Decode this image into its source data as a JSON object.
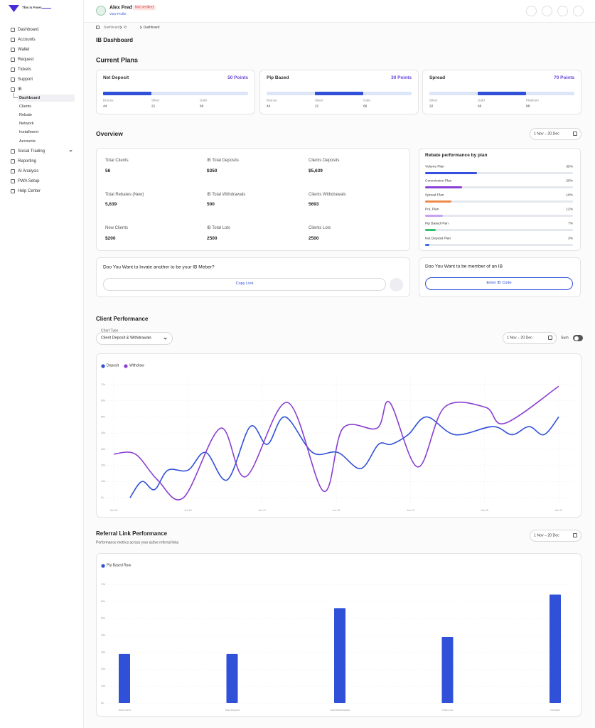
{
  "sidebar": {
    "brand": "This is Forex",
    "nav": [
      "Dashboard",
      "Accounts",
      "Wallet",
      "Request",
      "Tickets",
      "Support",
      "IB"
    ],
    "ib_sub": [
      "Dashboard",
      "Clients",
      "Rebate",
      "Network",
      "Installment",
      "Accounts"
    ],
    "nav_after": [
      "Social Trading",
      "Reporting",
      "AI Analysis",
      "PWA Setup",
      "Help Center"
    ]
  },
  "header": {
    "user_name": "Alex Fred",
    "status": "Not Verified",
    "profile_link": "View Profile"
  },
  "breadcrumb": [
    "Dashboard",
    "IB",
    "Dashboard"
  ],
  "page_title": "IB Dashboard",
  "plans": {
    "title": "Current Plans",
    "cards": [
      {
        "name": "Net Deposit",
        "points": "50 Points",
        "tiers": [
          {
            "name": "Bronze",
            "value": "44"
          },
          {
            "name": "Silver",
            "value": "21"
          },
          {
            "name": "Gold",
            "value": "66"
          }
        ]
      },
      {
        "name": "Pip Based",
        "points": "30 Points",
        "tiers": [
          {
            "name": "Bronze",
            "value": "44"
          },
          {
            "name": "Silver",
            "value": "21"
          },
          {
            "name": "Gold",
            "value": "66"
          }
        ]
      },
      {
        "name": "Spread",
        "points": "70 Points",
        "tiers": [
          {
            "name": "Silver",
            "value": "22"
          },
          {
            "name": "Gold",
            "value": "66"
          },
          {
            "name": "Platinum",
            "value": "88"
          }
        ]
      }
    ]
  },
  "overview": {
    "title": "Overview",
    "date_range": "1 Nov – 20 Dec",
    "stats": [
      {
        "label": "Total Clients",
        "value": "56"
      },
      {
        "label": "IB Total Deposits",
        "value": "$350"
      },
      {
        "label": "Clients Deposits",
        "value": "$5,639"
      },
      {
        "label": "Total Rebates (New)",
        "value": "5,639"
      },
      {
        "label": "IB Total Withdrawals",
        "value": "500"
      },
      {
        "label": "Clients Withdrawals",
        "value": "5693"
      },
      {
        "label": "New Clients",
        "value": "$200"
      },
      {
        "label": "IB Total Lots",
        "value": "2500"
      },
      {
        "label": "Clients Lots",
        "value": "2500"
      }
    ]
  },
  "rebate": {
    "title": "Rebate performance by plan",
    "plans": [
      {
        "name": "Volume Plan",
        "value": 35,
        "value_label": "35%",
        "color": "#3550e0"
      },
      {
        "name": "Commission Plan",
        "value": 25,
        "value_label": "25%",
        "color": "#8a3fd6"
      },
      {
        "name": "Spread Plan",
        "value": 18,
        "value_label": "18%",
        "color": "#f08a4b"
      },
      {
        "name": "PnL Plan",
        "value": 12,
        "value_label": "12%",
        "color": "#c6a4f2"
      },
      {
        "name": "Pip Based Plan",
        "value": 7,
        "value_label": "7%",
        "color": "#2fc26b"
      },
      {
        "name": "Net Deposit Plan",
        "value": 3,
        "value_label": "3%",
        "color": "#3a6be0"
      }
    ]
  },
  "invite": {
    "question": "Doo You Want to Invate another to be your IB Meber?",
    "button": "Copy Link"
  },
  "join": {
    "question": "Doo You Want to be member of an IB",
    "button": "Enter IB Code"
  },
  "client_performance": {
    "title": "Client Performance",
    "chart_type_label": "Chart Type",
    "chart_type": "Client Deposit & Withdrawals",
    "date_range": "1 Nov – 20 Dec",
    "sum_label": "Sum"
  },
  "referral": {
    "title": "Referral Link Performance",
    "subtitle": "Performance metrics across your active referral links",
    "date_range": "1 Nov – 20 Dec"
  },
  "chart_data": [
    {
      "type": "line",
      "xlim": [
        0,
        6
      ],
      "xticks": [
        {
          "value": 0,
          "label": "Jun 15"
        },
        {
          "value": 1,
          "label": "Jun 16"
        },
        {
          "value": 2,
          "label": "Jun 17"
        },
        {
          "value": 3,
          "label": "Jun 18"
        },
        {
          "value": 4,
          "label": "Jun 19"
        },
        {
          "value": 5,
          "label": "Jun 20"
        },
        {
          "value": 6,
          "label": "Jun 21"
        }
      ],
      "ylim": [
        0,
        70000
      ],
      "yticks": [
        {
          "value": 0,
          "label": "0k"
        },
        {
          "value": 10000,
          "label": "10k"
        },
        {
          "value": 20000,
          "label": "20k"
        },
        {
          "value": 30000,
          "label": "30k"
        },
        {
          "value": 40000,
          "label": "40k"
        },
        {
          "value": 50000,
          "label": "50k"
        },
        {
          "value": 60000,
          "label": "60k"
        },
        {
          "value": 70000,
          "label": "70k"
        }
      ],
      "grid": true,
      "series": [
        {
          "name": "Deposit",
          "color": "#3050d8",
          "x": [
            0.22,
            0.38,
            0.55,
            0.73,
            1.0,
            1.24,
            1.53,
            1.84,
            2.07,
            2.31,
            2.68,
            3.02,
            3.33,
            3.57,
            3.74,
            3.97,
            4.22,
            4.6,
            5.11,
            5.37,
            5.6,
            5.8,
            6.0
          ],
          "values": [
            0,
            10000,
            5000,
            17000,
            17000,
            28000,
            11000,
            44000,
            33000,
            50000,
            28000,
            28000,
            18000,
            33000,
            33000,
            39000,
            50000,
            39000,
            44000,
            39000,
            44000,
            39000,
            50000
          ]
        },
        {
          "name": "Withdraw",
          "color": "#8a3fd1",
          "x": [
            0,
            0.29,
            0.59,
            0.94,
            1.44,
            1.78,
            2.34,
            2.83,
            3.09,
            3.55,
            3.72,
            4.1,
            4.46,
            5.01,
            5.27,
            6.0
          ],
          "values": [
            27000,
            27000,
            11000,
            0,
            43000,
            13000,
            59000,
            4000,
            43000,
            43000,
            59000,
            19000,
            56000,
            56000,
            46000,
            69000
          ]
        }
      ]
    },
    {
      "type": "bar",
      "categories": [
        "Total Client",
        "Total Deposit",
        "Total Withdrawals",
        "Total Lots",
        "Rebates"
      ],
      "ylim": [
        0,
        70000
      ],
      "yticks": [
        {
          "value": 0,
          "label": "0k"
        },
        {
          "value": 10000,
          "label": "10k"
        },
        {
          "value": 20000,
          "label": "20k"
        },
        {
          "value": 30000,
          "label": "30k"
        },
        {
          "value": 40000,
          "label": "40k"
        },
        {
          "value": 50000,
          "label": "50k"
        },
        {
          "value": 60000,
          "label": "60k"
        },
        {
          "value": 70000,
          "label": "70k"
        }
      ],
      "grid": true,
      "series": [
        {
          "name": "Pip Based Raw",
          "color": "#3050d8",
          "values": [
            29000,
            29000,
            56000,
            39000,
            64000
          ]
        }
      ]
    }
  ]
}
